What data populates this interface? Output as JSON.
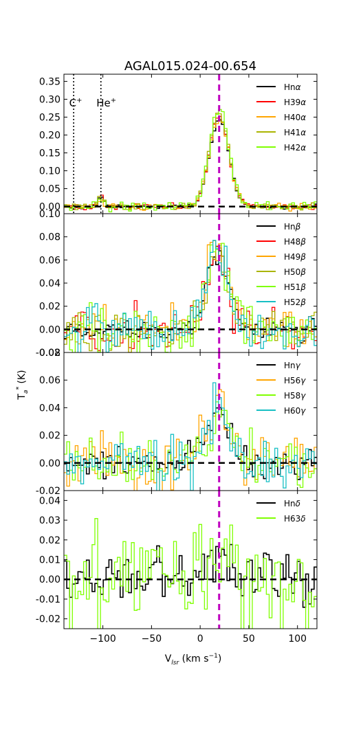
{
  "figure": {
    "title": "AGAL015.024-00.654",
    "xlabel": "V",
    "xlabel_sub": "lsr",
    "xlabel_unit": " (km s",
    "xlabel_exp": "−1",
    "xlabel_close": ")",
    "ylabel": "T",
    "ylabel_sub": "a",
    "ylabel_sup": "*",
    "ylabel_unit": "(K)"
  },
  "markers": {
    "c_plus": "C",
    "he_plus": "He",
    "plus": "+"
  },
  "chart_data": {
    "type": "line",
    "step": true,
    "xlim": [
      -140,
      120
    ],
    "xticks": [
      -100,
      -50,
      0,
      50,
      100
    ],
    "xtick_labels": [
      "−100",
      "−50",
      "0",
      "50",
      "100"
    ],
    "line_velocity": 19.5,
    "line_velocity_color": "#bf00bf",
    "marker_velocities": {
      "c_plus": -130,
      "he_plus": -102
    },
    "panels": [
      {
        "ylim": [
          -0.02,
          0.37
        ],
        "yticks": [
          0.0,
          0.05,
          0.1,
          0.15,
          0.2,
          0.25,
          0.3,
          0.35
        ],
        "ytick_labels": [
          "0.00",
          "0.05",
          "0.10",
          "0.15",
          "0.20",
          "0.25",
          "0.30",
          "0.35"
        ],
        "legend": [
          {
            "name": "Hn",
            "greek": "α",
            "color": "#000000"
          },
          {
            "name": "H39",
            "greek": "α",
            "color": "#ff0000"
          },
          {
            "name": "H40",
            "greek": "α",
            "color": "#ffa500"
          },
          {
            "name": "H41",
            "greek": "α",
            "color": "#aab400"
          },
          {
            "name": "H42",
            "greek": "α",
            "color": "#7fff00"
          }
        ],
        "profile": {
          "amp": 0.245,
          "center": 19.5,
          "sigma": 10
        },
        "series_amp": [
          1.0,
          1.03,
          1.0,
          1.07,
          1.1
        ],
        "series_noise": [
          0.005,
          0.008,
          0.009,
          0.01,
          0.012
        ],
        "marker_bumps": [
          {
            "v": -102,
            "amp": 0.025,
            "sigma": 3
          }
        ]
      },
      {
        "ylim": [
          -0.02,
          0.1
        ],
        "yticks": [
          -0.02,
          0.0,
          0.02,
          0.04,
          0.06,
          0.08,
          0.1
        ],
        "ytick_labels": [
          "-0.02",
          "0.00",
          "0.02",
          "0.04",
          "0.06",
          "0.08",
          "0.10"
        ],
        "legend": [
          {
            "name": "Hn",
            "greek": "β",
            "color": "#000000"
          },
          {
            "name": "H48",
            "greek": "β",
            "color": "#ff0000"
          },
          {
            "name": "H49",
            "greek": "β",
            "color": "#ffa500"
          },
          {
            "name": "H50",
            "greek": "β",
            "color": "#aab400"
          },
          {
            "name": "H51",
            "greek": "β",
            "color": "#7fff00"
          },
          {
            "name": "H52",
            "greek": "β",
            "color": "#17bfc4"
          }
        ],
        "profile": {
          "amp": 0.065,
          "center": 18,
          "sigma": 11
        },
        "series_amp": [
          1.0,
          1.05,
          1.1,
          0.95,
          1.15,
          1.1
        ],
        "series_noise": [
          0.008,
          0.016,
          0.017,
          0.015,
          0.018,
          0.016
        ]
      },
      {
        "ylim": [
          -0.02,
          0.08
        ],
        "yticks": [
          -0.02,
          0.0,
          0.02,
          0.04,
          0.06,
          0.08
        ],
        "ytick_labels": [
          "-0.02",
          "0.00",
          "0.02",
          "0.04",
          "0.06",
          "0.08"
        ],
        "legend": [
          {
            "name": "Hn",
            "greek": "γ",
            "color": "#000000"
          },
          {
            "name": "H56",
            "greek": "γ",
            "color": "#ffa500"
          },
          {
            "name": "H58",
            "greek": "γ",
            "color": "#7fff00"
          },
          {
            "name": "H60",
            "greek": "γ",
            "color": "#17bfc4"
          }
        ],
        "profile": {
          "amp": 0.038,
          "center": 19,
          "sigma": 12
        },
        "series_amp": [
          1.0,
          1.1,
          0.9,
          1.1
        ],
        "series_noise": [
          0.009,
          0.017,
          0.016,
          0.015
        ]
      },
      {
        "ylim": [
          -0.025,
          0.045
        ],
        "yticks": [
          -0.02,
          -0.01,
          0.0,
          0.01,
          0.02,
          0.03,
          0.04
        ],
        "ytick_labels": [
          "-0.02",
          "-0.01",
          "0.00",
          "0.01",
          "0.02",
          "0.03",
          "0.04"
        ],
        "legend": [
          {
            "name": "Hn",
            "greek": "δ",
            "color": "#000000"
          },
          {
            "name": "H63",
            "greek": "δ",
            "color": "#7fff00"
          }
        ],
        "profile": {
          "amp": 0.012,
          "center": 20,
          "sigma": 12
        },
        "series_amp": [
          1.0,
          1.4
        ],
        "series_noise": [
          0.011,
          0.024
        ]
      }
    ]
  }
}
